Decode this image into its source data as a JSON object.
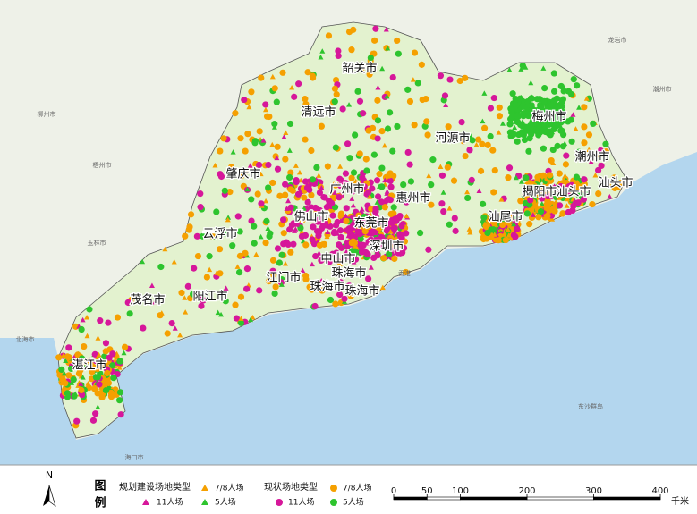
{
  "map": {
    "cities": [
      "韶关市",
      "清远市",
      "梅州市",
      "河源市",
      "潮州市",
      "肇庆市",
      "广州市",
      "揭阳市",
      "汕头市",
      "汕头市",
      "惠州市",
      "佛山市",
      "东莞市",
      "汕尾市",
      "云浮市",
      "深圳市",
      "中山市",
      "珠海市",
      "江门市",
      "珠海市",
      "珠海市",
      "阳江市",
      "茂名市",
      "湛江市"
    ],
    "basemap_labels": [
      "柳州市",
      "梧州市",
      "玉林市",
      "北海市",
      "海口市",
      "香港",
      "东沙群岛",
      "潮州市",
      "龙岩市"
    ]
  },
  "legend": {
    "north": "N",
    "title_1": "图",
    "title_2": "例",
    "planned": {
      "title": "规划建设场地类型",
      "items": [
        "11人场",
        "7/8人场",
        "5人场"
      ]
    },
    "current": {
      "title": "现状场地类型",
      "items": [
        "11人场",
        "7/8人场",
        "5人场"
      ]
    }
  },
  "scale": {
    "ticks": [
      0,
      50,
      100,
      200,
      300,
      400
    ],
    "unit": "千米"
  }
}
